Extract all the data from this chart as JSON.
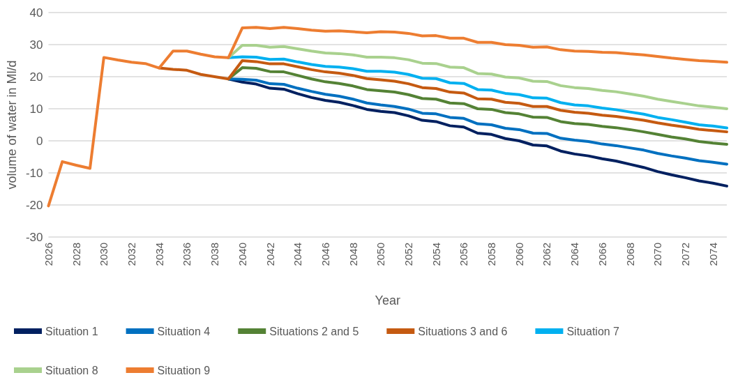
{
  "chart_data": {
    "type": "line",
    "xlabel": "Year",
    "ylabel": "volume of water in Ml/d",
    "x": [
      2026,
      2027,
      2028,
      2029,
      2030,
      2031,
      2032,
      2033,
      2034,
      2035,
      2036,
      2037,
      2038,
      2039,
      2040,
      2041,
      2042,
      2043,
      2044,
      2045,
      2046,
      2047,
      2048,
      2049,
      2050,
      2051,
      2052,
      2053,
      2054,
      2055,
      2056,
      2057,
      2058,
      2059,
      2060,
      2061,
      2062,
      2063,
      2064,
      2065,
      2066,
      2067,
      2068,
      2069,
      2070,
      2071,
      2072,
      2073,
      2074,
      2075
    ],
    "xlim": [
      2026,
      2075
    ],
    "xticks": [
      2026,
      2028,
      2030,
      2032,
      2034,
      2036,
      2038,
      2040,
      2042,
      2044,
      2046,
      2048,
      2050,
      2052,
      2054,
      2056,
      2058,
      2060,
      2062,
      2064,
      2066,
      2068,
      2070,
      2072,
      2074
    ],
    "ylim": [
      -30,
      40
    ],
    "yticks": [
      -30,
      -20,
      -10,
      0,
      10,
      20,
      30,
      40
    ],
    "grid": "y",
    "legend": "bottom",
    "marker": "none",
    "line_style": "solid",
    "series": [
      {
        "name": "Situation 1",
        "color": "#002060",
        "x": [
          2039,
          2040,
          2041,
          2042,
          2043,
          2044,
          2045,
          2046,
          2047,
          2048,
          2049,
          2050,
          2051,
          2052,
          2053,
          2054,
          2055,
          2056,
          2057,
          2058,
          2059,
          2060,
          2061,
          2062,
          2063,
          2064,
          2065,
          2066,
          2067,
          2068,
          2069,
          2070,
          2071,
          2072,
          2073,
          2074,
          2075
        ],
        "values": [
          19.3,
          18.3,
          17.7,
          16.4,
          16.1,
          14.7,
          13.5,
          12.6,
          12.0,
          11.0,
          9.8,
          9.2,
          8.8,
          7.8,
          6.4,
          6.0,
          4.7,
          4.3,
          2.4,
          2.0,
          0.7,
          0.0,
          -1.3,
          -1.6,
          -3.2,
          -4.1,
          -4.7,
          -5.6,
          -6.3,
          -7.3,
          -8.3,
          -9.6,
          -10.6,
          -11.5,
          -12.5,
          -13.2,
          -14.1
        ]
      },
      {
        "name": "Situation 4",
        "color": "#0070c0",
        "x": [
          2039,
          2040,
          2041,
          2042,
          2043,
          2044,
          2045,
          2046,
          2047,
          2048,
          2049,
          2050,
          2051,
          2052,
          2053,
          2054,
          2055,
          2056,
          2057,
          2058,
          2059,
          2060,
          2061,
          2062,
          2063,
          2064,
          2065,
          2066,
          2067,
          2068,
          2069,
          2070,
          2071,
          2072,
          2073,
          2074,
          2075
        ],
        "values": [
          19.3,
          19.2,
          18.9,
          17.8,
          17.6,
          16.4,
          15.4,
          14.5,
          13.9,
          13.0,
          11.8,
          11.2,
          10.7,
          9.9,
          8.6,
          8.4,
          7.3,
          7.0,
          5.3,
          5.0,
          3.9,
          3.5,
          2.4,
          2.3,
          0.8,
          0.2,
          -0.2,
          -1.0,
          -1.5,
          -2.2,
          -2.9,
          -3.9,
          -4.7,
          -5.4,
          -6.2,
          -6.7,
          -7.3
        ]
      },
      {
        "name": "Situations 2 and 5",
        "color": "#548235",
        "x": [
          2039,
          2040,
          2041,
          2042,
          2043,
          2044,
          2045,
          2046,
          2047,
          2048,
          2049,
          2050,
          2051,
          2052,
          2053,
          2054,
          2055,
          2056,
          2057,
          2058,
          2059,
          2060,
          2061,
          2062,
          2063,
          2064,
          2065,
          2066,
          2067,
          2068,
          2069,
          2070,
          2071,
          2072,
          2073,
          2074,
          2075
        ],
        "values": [
          19.3,
          22.8,
          22.6,
          21.6,
          21.5,
          20.4,
          19.3,
          18.4,
          17.9,
          17.1,
          16.0,
          15.6,
          15.2,
          14.4,
          13.2,
          13.0,
          11.8,
          11.6,
          10.0,
          9.8,
          8.8,
          8.4,
          7.4,
          7.3,
          6.0,
          5.4,
          5.1,
          4.5,
          4.1,
          3.5,
          2.8,
          2.0,
          1.2,
          0.6,
          -0.2,
          -0.7,
          -1.1
        ]
      },
      {
        "name": "Situations 3 and 6",
        "color": "#c55a11",
        "x": [
          2034,
          2035,
          2036,
          2037,
          2038,
          2039,
          2040,
          2041,
          2042,
          2043,
          2044,
          2045,
          2046,
          2047,
          2048,
          2049,
          2050,
          2051,
          2052,
          2053,
          2054,
          2055,
          2056,
          2057,
          2058,
          2059,
          2060,
          2061,
          2062,
          2063,
          2064,
          2065,
          2066,
          2067,
          2068,
          2069,
          2070,
          2071,
          2072,
          2073,
          2074,
          2075
        ],
        "values": [
          22.7,
          22.3,
          22.0,
          20.7,
          20.0,
          19.3,
          25.0,
          24.7,
          24.0,
          24.0,
          23.1,
          22.2,
          21.5,
          21.1,
          20.4,
          19.4,
          19.0,
          18.6,
          17.8,
          16.6,
          16.3,
          15.2,
          14.9,
          13.1,
          13.0,
          12.0,
          11.7,
          10.7,
          10.7,
          9.5,
          8.9,
          8.6,
          8.0,
          7.6,
          7.0,
          6.4,
          5.6,
          4.9,
          4.3,
          3.6,
          3.2,
          2.8
        ]
      },
      {
        "name": "Situation 7",
        "color": "#00b0f0",
        "x": [
          2039,
          2040,
          2041,
          2042,
          2043,
          2044,
          2045,
          2046,
          2047,
          2048,
          2049,
          2050,
          2051,
          2052,
          2053,
          2054,
          2055,
          2056,
          2057,
          2058,
          2059,
          2060,
          2061,
          2062,
          2063,
          2064,
          2065,
          2066,
          2067,
          2068,
          2069,
          2070,
          2071,
          2072,
          2073,
          2074,
          2075
        ],
        "values": [
          25.9,
          26.2,
          26.1,
          25.4,
          25.5,
          24.6,
          23.8,
          23.2,
          23.0,
          22.5,
          21.7,
          21.7,
          21.4,
          20.7,
          19.5,
          19.4,
          18.1,
          17.9,
          16.0,
          15.8,
          14.8,
          14.4,
          13.4,
          13.3,
          11.9,
          11.2,
          10.9,
          10.2,
          9.7,
          9.0,
          8.3,
          7.3,
          6.6,
          5.8,
          5.0,
          4.6,
          4.0
        ]
      },
      {
        "name": "Situation 8",
        "color": "#a9d18e",
        "x": [
          2039,
          2040,
          2041,
          2042,
          2043,
          2044,
          2045,
          2046,
          2047,
          2048,
          2049,
          2050,
          2051,
          2052,
          2053,
          2054,
          2055,
          2056,
          2057,
          2058,
          2059,
          2060,
          2061,
          2062,
          2063,
          2064,
          2065,
          2066,
          2067,
          2068,
          2069,
          2070,
          2071,
          2072,
          2073,
          2074,
          2075
        ],
        "values": [
          25.9,
          29.8,
          29.8,
          29.2,
          29.4,
          28.7,
          28.0,
          27.4,
          27.2,
          26.8,
          26.1,
          26.1,
          25.9,
          25.3,
          24.2,
          24.1,
          23.0,
          22.8,
          21.0,
          20.8,
          19.9,
          19.6,
          18.6,
          18.5,
          17.2,
          16.6,
          16.3,
          15.7,
          15.3,
          14.6,
          13.9,
          13.0,
          12.3,
          11.6,
          10.9,
          10.5,
          10.0
        ]
      },
      {
        "name": "Situation 9",
        "color": "#ed7d31",
        "values": [
          -20.3,
          -6.5,
          -7.6,
          -8.6,
          26.0,
          25.2,
          24.5,
          24.1,
          22.7,
          28.0,
          28.0,
          27.0,
          26.2,
          25.9,
          35.2,
          35.4,
          35.0,
          35.4,
          35.0,
          34.5,
          34.2,
          34.3,
          34.0,
          33.7,
          34.0,
          33.9,
          33.5,
          32.7,
          32.8,
          32.0,
          32.0,
          30.7,
          30.7,
          30.0,
          29.8,
          29.2,
          29.3,
          28.4,
          28.0,
          27.9,
          27.6,
          27.5,
          27.1,
          26.8,
          26.3,
          25.8,
          25.4,
          25.0,
          24.8,
          24.5
        ]
      }
    ]
  }
}
